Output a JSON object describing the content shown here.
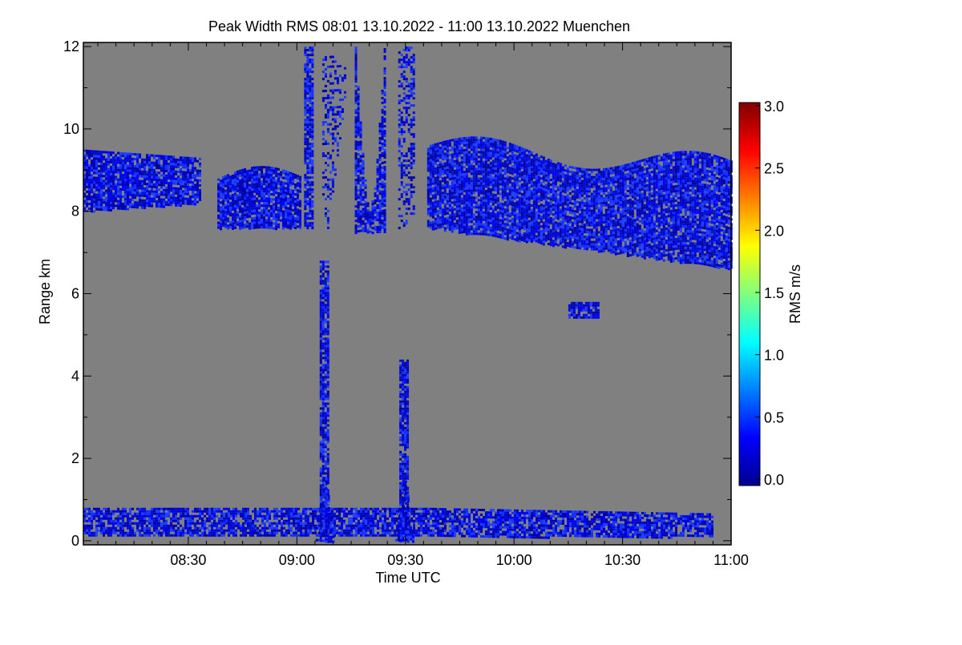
{
  "chart_data": {
    "type": "heatmap",
    "title": "Peak Width RMS   08:01 13.10.2022 - 11:00 13.10.2022 Muenchen",
    "xlabel": "Time UTC",
    "ylabel": "Range km",
    "xlim_minutes_from_0800": [
      1,
      180
    ],
    "ylim": [
      -0.1,
      12.1
    ],
    "x_ticks": [
      {
        "label": "08:30",
        "min": 30
      },
      {
        "label": "09:00",
        "min": 60
      },
      {
        "label": "09:30",
        "min": 90
      },
      {
        "label": "10:00",
        "min": 120
      },
      {
        "label": "10:30",
        "min": 150
      },
      {
        "label": "11:00",
        "min": 180
      }
    ],
    "y_ticks": [
      {
        "label": "0",
        "v": 0
      },
      {
        "label": "2",
        "v": 2
      },
      {
        "label": "4",
        "v": 4
      },
      {
        "label": "6",
        "v": 6
      },
      {
        "label": "8",
        "v": 8
      },
      {
        "label": "10",
        "v": 10
      },
      {
        "label": "12",
        "v": 12
      }
    ],
    "colorbar": {
      "label": "RMS m/s",
      "range": [
        0,
        3
      ],
      "ticks": [
        {
          "label": "0.0",
          "v": 0
        },
        {
          "label": "0.5",
          "v": 0.5
        },
        {
          "label": "1.0",
          "v": 1.0
        },
        {
          "label": "1.5",
          "v": 1.5
        },
        {
          "label": "2.0",
          "v": 2.0
        },
        {
          "label": "2.5",
          "v": 2.5
        },
        {
          "label": "3.0",
          "v": 3.0
        }
      ]
    },
    "background_color": "#808080",
    "features": [
      {
        "name": "boundary-layer",
        "t": [
          1,
          175
        ],
        "r": [
          0.1,
          0.8
        ],
        "rms": 0.3
      },
      {
        "name": "cirrus-left",
        "t": [
          1,
          33
        ],
        "r": [
          7.9,
          9.8
        ],
        "rms": 0.3
      },
      {
        "name": "cirrus-mid",
        "t": [
          38,
          61
        ],
        "r": [
          7.6,
          9.2
        ],
        "rms": 0.3
      },
      {
        "name": "cirrus-right",
        "t": [
          96,
          180
        ],
        "r": [
          6.6,
          10.0
        ],
        "rms": 0.35
      },
      {
        "name": "cloud-small",
        "t": [
          135,
          143
        ],
        "r": [
          5.3,
          5.8
        ],
        "rms": 0.3
      },
      {
        "name": "shower-1",
        "t": [
          67,
          68
        ],
        "r": [
          0,
          6.8
        ],
        "rms": 0.4
      },
      {
        "name": "shower-2",
        "t": [
          89,
          90
        ],
        "r": [
          0,
          4.4
        ],
        "rms": 0.4
      }
    ]
  }
}
